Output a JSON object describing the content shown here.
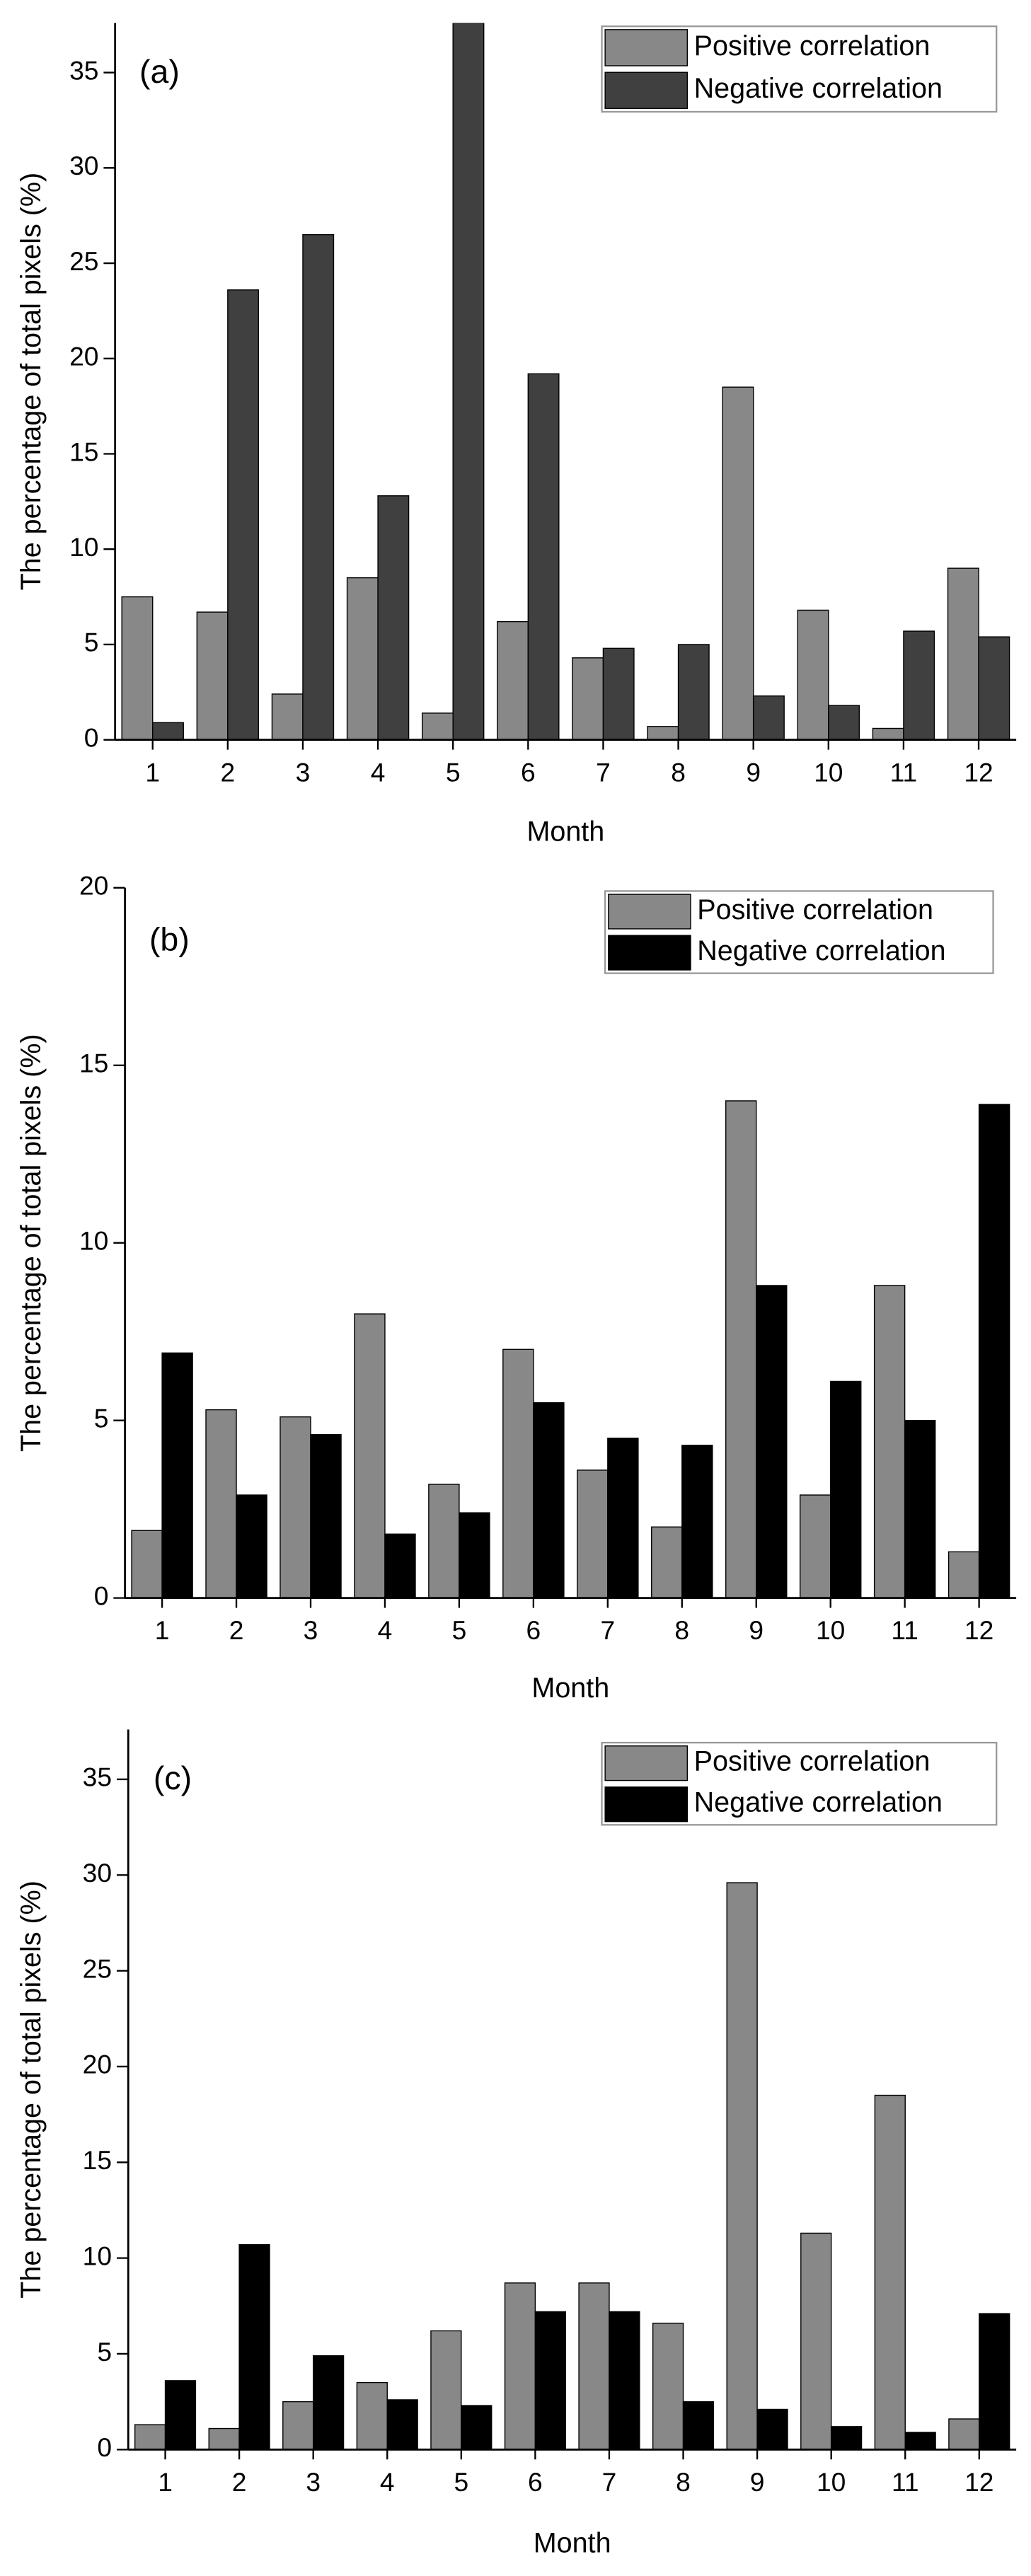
{
  "chart_data": [
    {
      "type": "bar",
      "panel_label": "(a)",
      "x_label": "Month",
      "y_label": "The percentage of total pixels (%)",
      "categories": [
        "1",
        "2",
        "3",
        "4",
        "5",
        "6",
        "7",
        "8",
        "9",
        "10",
        "11",
        "12"
      ],
      "series": [
        {
          "name": "Positive correlation",
          "color": "#888888",
          "values": [
            7.5,
            6.7,
            2.4,
            8.5,
            1.4,
            6.2,
            4.3,
            0.7,
            18.5,
            6.8,
            0.6,
            9.0
          ]
        },
        {
          "name": "Negative correlation",
          "color": "#404040",
          "values": [
            0.9,
            23.6,
            26.5,
            12.8,
            37.6,
            19.2,
            4.8,
            5.0,
            2.3,
            1.8,
            5.7,
            5.4
          ]
        }
      ],
      "ylim": [
        0,
        37.6
      ],
      "yticks": [
        0,
        5,
        10,
        15,
        20,
        25,
        30,
        35
      ],
      "legend": "upper right"
    },
    {
      "type": "bar",
      "panel_label": "(b)",
      "x_label": "Month",
      "y_label": "The percentage of total pixels (%)",
      "categories": [
        "1",
        "2",
        "3",
        "4",
        "5",
        "6",
        "7",
        "8",
        "9",
        "10",
        "11",
        "12"
      ],
      "series": [
        {
          "name": "Positive correlation",
          "color": "#888888",
          "values": [
            1.9,
            5.3,
            5.1,
            8.0,
            3.2,
            7.0,
            3.6,
            2.0,
            14.0,
            2.9,
            8.8,
            1.3
          ]
        },
        {
          "name": "Negative correlation",
          "color": "#000000",
          "values": [
            6.9,
            2.9,
            4.6,
            1.8,
            2.4,
            5.5,
            4.5,
            4.3,
            8.8,
            6.1,
            5.0,
            13.9
          ]
        }
      ],
      "ylim": [
        0,
        20
      ],
      "yticks": [
        0,
        5,
        10,
        15,
        20
      ],
      "legend": "upper right"
    },
    {
      "type": "bar",
      "panel_label": "(c)",
      "x_label": "Month",
      "y_label": "The percentage of total pixels (%)",
      "categories": [
        "1",
        "2",
        "3",
        "4",
        "5",
        "6",
        "7",
        "8",
        "9",
        "10",
        "11",
        "12"
      ],
      "series": [
        {
          "name": "Positive correlation",
          "color": "#888888",
          "values": [
            1.3,
            1.1,
            2.5,
            3.5,
            6.2,
            8.7,
            8.7,
            6.6,
            29.6,
            11.3,
            18.5,
            1.6
          ]
        },
        {
          "name": "Negative correlation",
          "color": "#000000",
          "values": [
            3.6,
            10.7,
            4.9,
            2.6,
            2.3,
            7.2,
            7.2,
            2.5,
            2.1,
            1.2,
            0.9,
            7.1
          ]
        }
      ],
      "ylim": [
        0,
        37.6
      ],
      "yticks": [
        0,
        5,
        10,
        15,
        20,
        25,
        30,
        35
      ],
      "legend": "upper right"
    }
  ]
}
